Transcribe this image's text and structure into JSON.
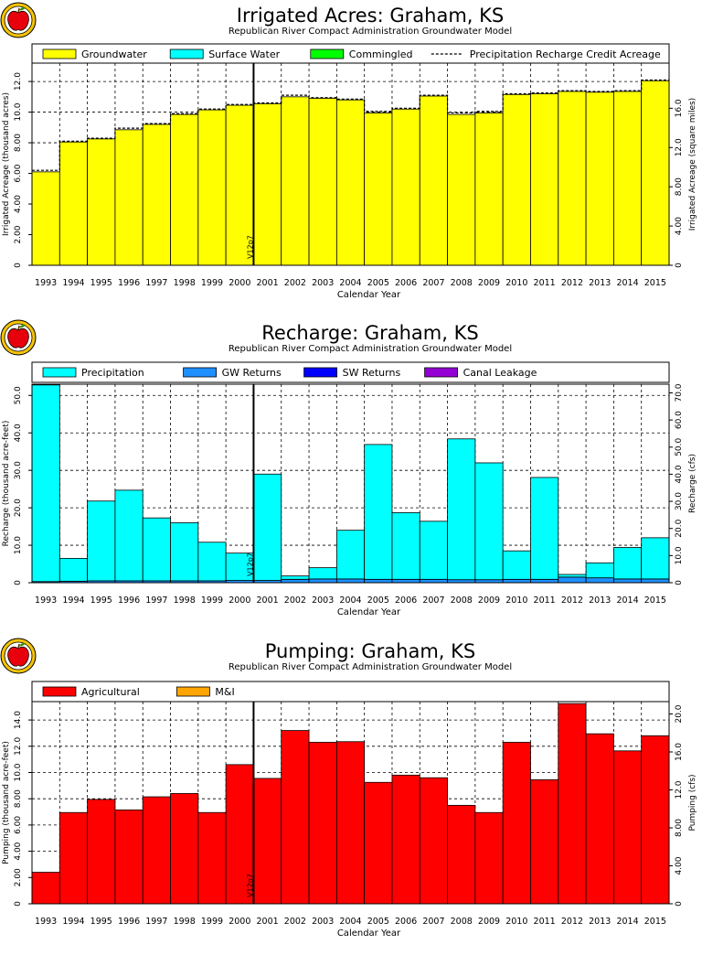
{
  "subtitle": "Republican River Compact Administration Groundwater Model",
  "colors": {
    "groundwater": "#ffff00",
    "surface_water": "#00ffff",
    "commingled": "#00ff00",
    "precipitation": "#00ffff",
    "gw_returns": "#1e90ff",
    "sw_returns": "#0000ff",
    "canal_leakage": "#9400d3",
    "agricultural": "#ff0000",
    "mi": "#ffa500",
    "logo_apple": "#e8000d",
    "logo_ring": "#f6c400"
  },
  "logo": {
    "icon": "kansas-apple-logo-icon"
  },
  "chart_data": [
    {
      "id": "acres",
      "type": "bar",
      "title": "Irrigated Acres: Graham, KS",
      "xlabel": "Calendar Year",
      "ylabel": "Irrigated Acreage (thousand acres)",
      "y2label": "Irrigated Acreage (square miles)",
      "ylim": [
        0,
        13.2
      ],
      "yticks": [
        0,
        2.0,
        4.0,
        6.0,
        8.0,
        10.0,
        12.0
      ],
      "ytick_labels": [
        "0",
        "2.00",
        "4.00",
        "6.00",
        "8.00",
        "10.0",
        "12.0"
      ],
      "y2lim": [
        0,
        20.6
      ],
      "y2ticks": [
        0,
        4,
        8,
        12,
        16
      ],
      "y2tick_labels": [
        "0",
        "4.00",
        "8.00",
        "12.0",
        "16.0"
      ],
      "categories": [
        "1993",
        "1994",
        "1995",
        "1996",
        "1997",
        "1998",
        "1999",
        "2000",
        "2001",
        "2002",
        "2003",
        "2004",
        "2005",
        "2006",
        "2007",
        "2008",
        "2009",
        "2010",
        "2011",
        "2012",
        "2013",
        "2014",
        "2015"
      ],
      "series": [
        {
          "name": "Groundwater",
          "color": "#ffff00",
          "values": [
            6.1,
            8.05,
            8.25,
            8.85,
            9.2,
            9.85,
            10.15,
            10.45,
            10.55,
            11.0,
            10.9,
            10.8,
            9.95,
            10.2,
            11.05,
            9.85,
            9.95,
            11.15,
            11.2,
            11.35,
            11.3,
            11.35,
            12.05
          ]
        },
        {
          "name": "Surface Water",
          "color": "#00ffff",
          "values": [
            0,
            0,
            0,
            0,
            0,
            0,
            0,
            0,
            0,
            0,
            0,
            0,
            0,
            0,
            0,
            0,
            0,
            0,
            0,
            0,
            0,
            0,
            0
          ]
        },
        {
          "name": "Commingled",
          "color": "#00ff00",
          "values": [
            0,
            0,
            0,
            0,
            0,
            0,
            0,
            0,
            0,
            0,
            0,
            0,
            0,
            0,
            0,
            0,
            0,
            0,
            0,
            0,
            0,
            0,
            0
          ]
        }
      ],
      "line_series": {
        "name": "Precipitation Recharge Credit Acreage",
        "values": [
          6.2,
          8.1,
          8.3,
          8.95,
          9.25,
          9.9,
          10.2,
          10.5,
          10.6,
          11.1,
          10.95,
          10.85,
          10.05,
          10.25,
          11.1,
          9.95,
          10.05,
          11.2,
          11.25,
          11.4,
          11.35,
          11.4,
          12.1
        ]
      },
      "vline": {
        "label": "V12p7",
        "after_index": 7
      }
    },
    {
      "id": "recharge",
      "type": "bar",
      "title": "Recharge: Graham, KS",
      "xlabel": "Calendar Year",
      "ylabel": "Recharge (thousand acre-feet)",
      "y2label": "Recharge (cfs)",
      "ylim": [
        0,
        53
      ],
      "yticks": [
        0,
        10,
        20,
        30,
        40,
        50
      ],
      "ytick_labels": [
        "0",
        "10.0",
        "20.0",
        "30.0",
        "40.0",
        "50.0"
      ],
      "y2lim": [
        0,
        73.2
      ],
      "y2ticks": [
        0,
        10,
        20,
        30,
        40,
        50,
        60,
        70
      ],
      "y2tick_labels": [
        "0",
        "10.0",
        "20.0",
        "30.0",
        "40.0",
        "50.0",
        "60.0",
        "70.0"
      ],
      "categories": [
        "1993",
        "1994",
        "1995",
        "1996",
        "1997",
        "1998",
        "1999",
        "2000",
        "2001",
        "2002",
        "2003",
        "2004",
        "2005",
        "2006",
        "2007",
        "2008",
        "2009",
        "2010",
        "2011",
        "2012",
        "2013",
        "2014",
        "2015"
      ],
      "series": [
        {
          "name": "GW Returns",
          "color": "#1e90ff",
          "values": [
            0.3,
            0.4,
            0.5,
            0.5,
            0.5,
            0.5,
            0.5,
            0.6,
            0.6,
            0.9,
            1.0,
            1.0,
            0.9,
            0.9,
            0.9,
            0.8,
            0.8,
            0.9,
            0.9,
            1.5,
            1.3,
            1.0,
            1.0
          ]
        },
        {
          "name": "Precipitation",
          "color": "#00ffff",
          "values": [
            52.5,
            6.1,
            21.3,
            24.2,
            16.8,
            15.5,
            10.3,
            7.3,
            28.4,
            0.9,
            3.0,
            13.0,
            36.0,
            17.8,
            15.5,
            37.6,
            31.2,
            7.6,
            27.2,
            0.7,
            4.0,
            8.4,
            11.0
          ]
        },
        {
          "name": "SW Returns",
          "color": "#0000ff",
          "values": [
            0,
            0,
            0,
            0,
            0,
            0,
            0,
            0,
            0,
            0,
            0,
            0,
            0,
            0,
            0,
            0,
            0,
            0,
            0,
            0,
            0,
            0,
            0
          ]
        },
        {
          "name": "Canal Leakage",
          "color": "#9400d3",
          "values": [
            0,
            0,
            0,
            0,
            0,
            0,
            0,
            0,
            0,
            0,
            0,
            0,
            0,
            0,
            0,
            0,
            0,
            0,
            0,
            0,
            0,
            0,
            0
          ]
        }
      ],
      "legend_order": [
        "Precipitation",
        "GW Returns",
        "SW Returns",
        "Canal Leakage"
      ],
      "vline": {
        "label": "V12p7",
        "after_index": 7
      }
    },
    {
      "id": "pumping",
      "type": "bar",
      "title": "Pumping: Graham, KS",
      "xlabel": "Calendar Year",
      "ylabel": "Pumping (thousand acre-feet)",
      "y2label": "Pumping (cfs)",
      "ylim": [
        0,
        15.4
      ],
      "yticks": [
        0,
        2,
        4,
        6,
        8,
        10,
        12,
        14
      ],
      "ytick_labels": [
        "0",
        "2.00",
        "4.00",
        "6.00",
        "8.00",
        "10.0",
        "12.0",
        "14.0"
      ],
      "y2lim": [
        0,
        21.3
      ],
      "y2ticks": [
        0,
        4,
        8,
        12,
        16,
        20
      ],
      "y2tick_labels": [
        "0",
        "4.00",
        "8.00",
        "12.0",
        "16.0",
        "20.0"
      ],
      "categories": [
        "1993",
        "1994",
        "1995",
        "1996",
        "1997",
        "1998",
        "1999",
        "2000",
        "2001",
        "2002",
        "2003",
        "2004",
        "2005",
        "2006",
        "2007",
        "2008",
        "2009",
        "2010",
        "2011",
        "2012",
        "2013",
        "2014",
        "2015"
      ],
      "series": [
        {
          "name": "Agricultural",
          "color": "#ff0000",
          "values": [
            2.4,
            6.95,
            7.95,
            7.15,
            8.15,
            8.4,
            6.95,
            10.6,
            9.55,
            13.2,
            12.3,
            12.35,
            9.25,
            9.8,
            9.6,
            7.5,
            6.95,
            12.3,
            9.45,
            15.25,
            12.95,
            11.65,
            12.8
          ]
        },
        {
          "name": "M&I",
          "color": "#ffa500",
          "values": [
            0,
            0,
            0,
            0,
            0,
            0,
            0,
            0,
            0,
            0,
            0,
            0,
            0,
            0,
            0,
            0,
            0,
            0,
            0,
            0,
            0,
            0,
            0
          ]
        }
      ],
      "vline": {
        "label": "V12p7",
        "after_index": 7
      }
    }
  ]
}
